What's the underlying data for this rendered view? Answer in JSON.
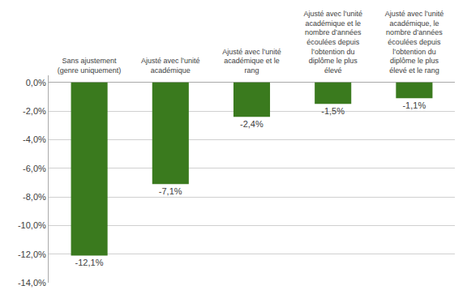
{
  "chart_data": {
    "type": "bar",
    "categories": [
      "Sans ajustement\n(genre uniquement)",
      "Ajusté avec l’unité\nacadémique",
      "Ajusté avec l’unité\nacadémique et le\nrang",
      "Ajusté avec l’unité\nacadémique et le\nnombre d’années\nécoulées depuis\nl’obtention du\ndiplôme le plus\nélevé",
      "Ajusté avec l’unité\nacadémique, le\nnombre d’années\nécoulées depuis\nl’obtention du\ndiplôme le plus\nélevé et le rang"
    ],
    "values": [
      -12.1,
      -7.1,
      -2.4,
      -1.5,
      -1.1
    ],
    "value_labels": [
      "-12,1%",
      "-7,1%",
      "-2,4%",
      "-1,5%",
      "-1,1%"
    ],
    "color": "#3a7a1e",
    "ylim": [
      -14.0,
      0.5
    ],
    "yticks": [
      {
        "value": 0.0,
        "label": "0,0%"
      },
      {
        "value": -2.0,
        "label": "-2,0%"
      },
      {
        "value": -4.0,
        "label": "-4,0%"
      },
      {
        "value": -6.0,
        "label": "-6,0%"
      },
      {
        "value": -8.0,
        "label": "-8,0%"
      },
      {
        "value": -10.0,
        "label": "-10,0%"
      },
      {
        "value": -12.0,
        "label": "-12,0%"
      },
      {
        "value": -14.0,
        "label": "-14,0%"
      }
    ],
    "grid": true,
    "data_labels": true
  }
}
